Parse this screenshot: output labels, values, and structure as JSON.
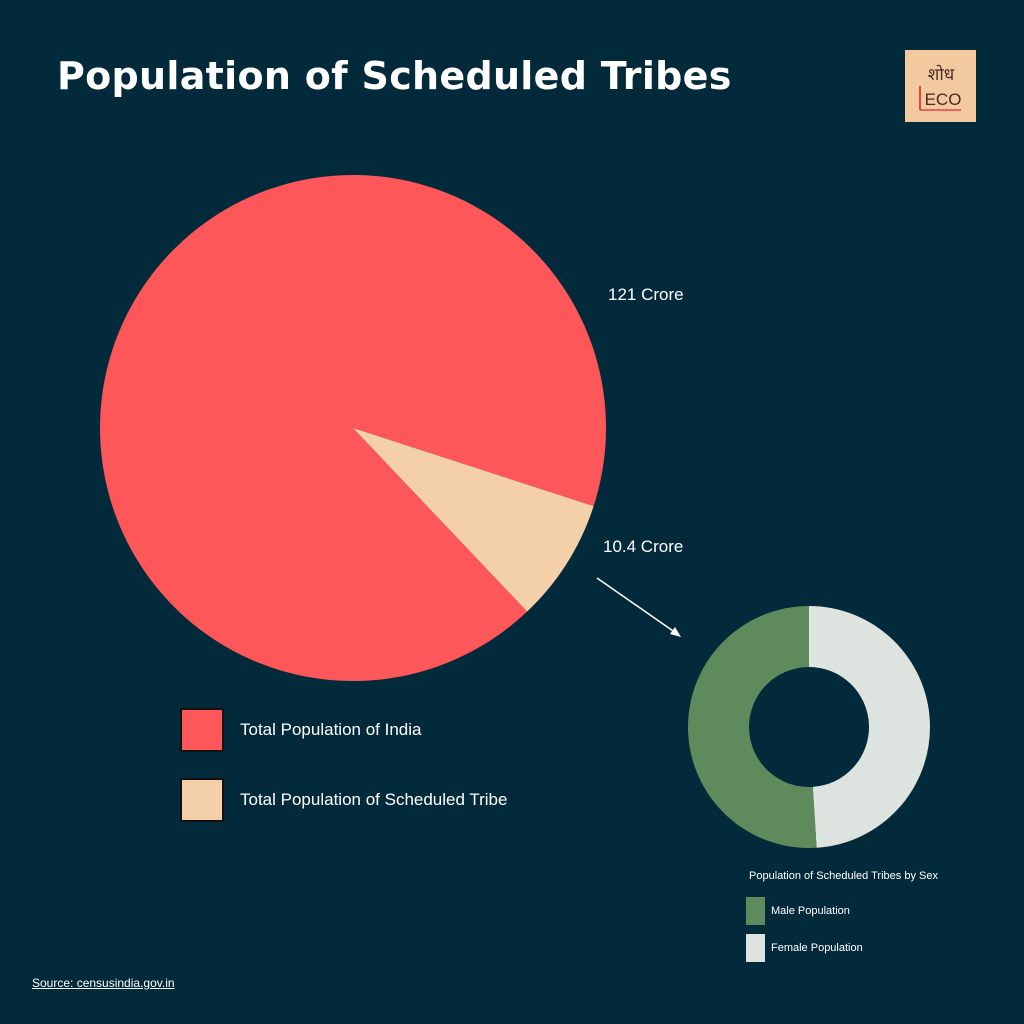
{
  "title": "Population of Scheduled Tribes",
  "logo": {
    "line1": "शोध",
    "line2": "ECO",
    "background": "#f3c9a0",
    "accent": "#e2463d"
  },
  "colors": {
    "background": "#032a3a"
  },
  "chart_data": [
    {
      "type": "pie",
      "slices": [
        {
          "name": "Total Population of India",
          "value": 121,
          "label": "121 Crore",
          "color": "#fd575a"
        },
        {
          "name": "Total Population of Scheduled Tribe",
          "value": 10.4,
          "label": "10.4 Crore",
          "color": "#f4d0a8"
        }
      ],
      "legend": [
        {
          "label": "Total Population of India",
          "color": "#fd575a"
        },
        {
          "label": "Total Population of Scheduled Tribe",
          "color": "#f4d0a8"
        }
      ]
    },
    {
      "type": "pie",
      "variant": "donut",
      "title": "Population of Scheduled Tribes by Sex",
      "slices": [
        {
          "name": "Male Population",
          "value": 0.51,
          "color": "#5e8a5c"
        },
        {
          "name": "Female Population",
          "value": 0.49,
          "color": "#dde3df"
        }
      ],
      "legend": [
        {
          "label": "Male Population",
          "color": "#5e8a5c"
        },
        {
          "label": "Female Population",
          "color": "#dde3df"
        }
      ]
    }
  ],
  "source": "Source: censusindia.gov.in"
}
